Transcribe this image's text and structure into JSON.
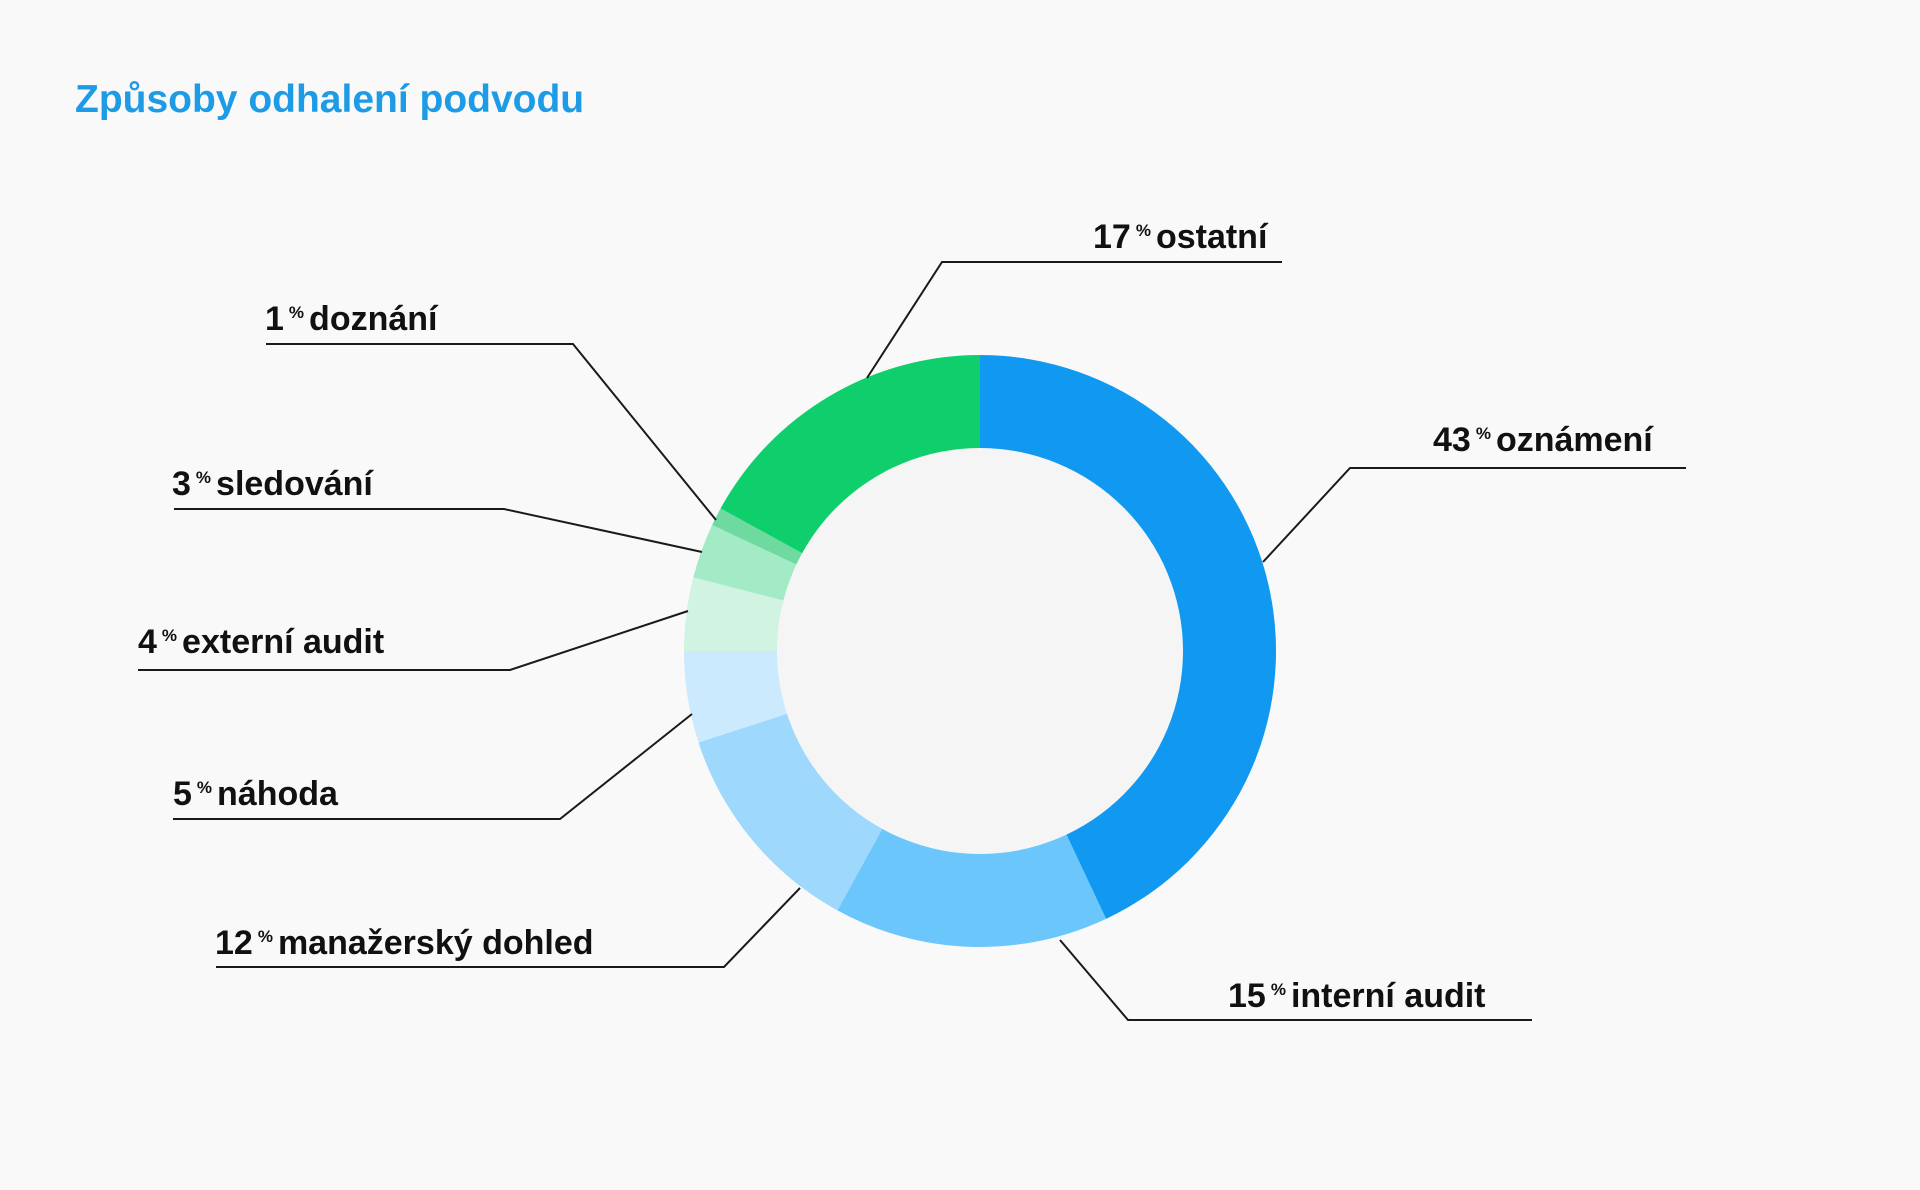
{
  "chart_data": {
    "type": "pie",
    "title": "Způsoby odhalení podvodu",
    "unit": "%",
    "slices": [
      {
        "label": "oznámení",
        "value": 43,
        "color": "#1199f2"
      },
      {
        "label": "interní audit",
        "value": 15,
        "color": "#6bc6fb"
      },
      {
        "label": "manažerský dohled",
        "value": 12,
        "color": "#9ed9fd"
      },
      {
        "label": "náhoda",
        "value": 5,
        "color": "#cbeafe"
      },
      {
        "label": "externí audit",
        "value": 4,
        "color": "#d1f3e1"
      },
      {
        "label": "sledování",
        "value": 3,
        "color": "#a3eac7"
      },
      {
        "label": "doznání",
        "value": 1,
        "color": "#6edaa0"
      },
      {
        "label": "ostatní",
        "value": 17,
        "color": "#0ecf6b"
      }
    ]
  }
}
